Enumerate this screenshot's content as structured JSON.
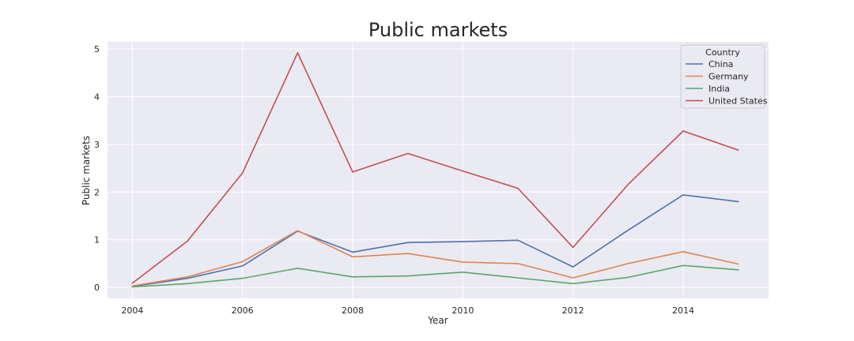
{
  "chart_data": {
    "type": "line",
    "title": "Public markets",
    "xlabel": "Year",
    "ylabel": "Public markets",
    "x": [
      2004,
      2005,
      2006,
      2007,
      2008,
      2009,
      2010,
      2011,
      2012,
      2013,
      2014,
      2015
    ],
    "xlim": [
      2003.55,
      2015.55
    ],
    "ylim": [
      -0.23,
      5.15
    ],
    "xticks": [
      2004,
      2006,
      2008,
      2010,
      2012,
      2014
    ],
    "yticks": [
      0,
      1,
      2,
      3,
      4,
      5
    ],
    "grid": true,
    "legend": {
      "title": "Country",
      "position": "top-right"
    },
    "series": [
      {
        "name": "China",
        "color": "#4c72b0",
        "values": [
          0.02,
          0.19,
          0.45,
          1.18,
          0.74,
          0.94,
          0.96,
          0.99,
          0.43,
          1.2,
          1.94,
          1.8
        ]
      },
      {
        "name": "Germany",
        "color": "#dd8452",
        "values": [
          0.03,
          0.22,
          0.54,
          1.19,
          0.64,
          0.71,
          0.53,
          0.5,
          0.2,
          0.5,
          0.75,
          0.49
        ]
      },
      {
        "name": "India",
        "color": "#55a868",
        "values": [
          0.01,
          0.08,
          0.19,
          0.4,
          0.22,
          0.24,
          0.32,
          0.2,
          0.08,
          0.21,
          0.46,
          0.37
        ]
      },
      {
        "name": "United States",
        "color": "#c44e52",
        "values": [
          0.09,
          0.97,
          2.4,
          4.92,
          2.42,
          2.81,
          2.44,
          2.08,
          0.84,
          2.16,
          3.28,
          2.88
        ]
      }
    ]
  }
}
